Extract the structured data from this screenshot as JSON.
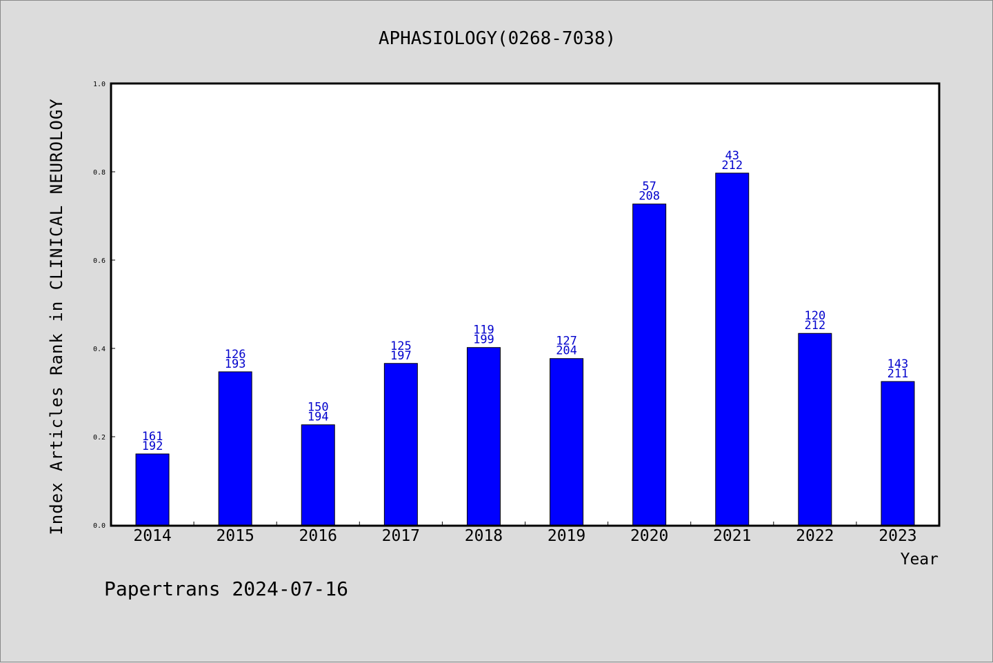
{
  "chart_data": {
    "type": "bar",
    "title": "APHASIOLOGY(0268-7038)",
    "xlabel": "Year",
    "ylabel": "Index Articles Rank in CLINICAL NEUROLOGY",
    "ylim": [
      0,
      1.0
    ],
    "yticks": [
      "0.0",
      "0.2",
      "0.4",
      "0.6",
      "0.8",
      "1.0"
    ],
    "categories": [
      "2014",
      "2015",
      "2016",
      "2017",
      "2018",
      "2019",
      "2020",
      "2021",
      "2022",
      "2023"
    ],
    "values": [
      0.161,
      0.347,
      0.227,
      0.366,
      0.402,
      0.377,
      0.727,
      0.797,
      0.434,
      0.325
    ],
    "labels_top": [
      "161",
      "126",
      "150",
      "125",
      "119",
      "127",
      "57",
      "43",
      "120",
      "143"
    ],
    "labels_bottom": [
      "192",
      "193",
      "194",
      "197",
      "199",
      "204",
      "208",
      "212",
      "212",
      "211"
    ],
    "bar_color": "#0000ff",
    "label_color": "#0000cc",
    "grid": false
  },
  "footer": "Papertrans 2024-07-16"
}
